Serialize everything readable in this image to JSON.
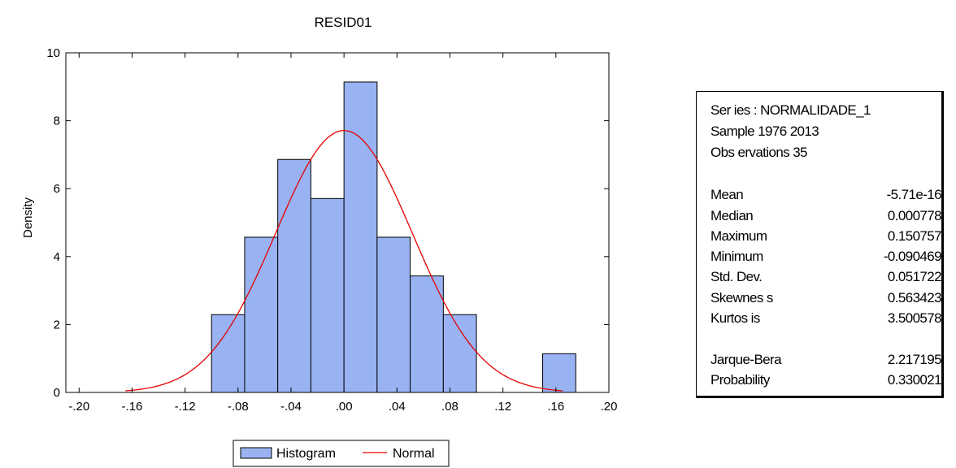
{
  "chart_data": {
    "type": "bar",
    "title": "RESID01",
    "xlabel": "",
    "ylabel": "Density",
    "xlim": [
      -0.21,
      0.2
    ],
    "ylim": [
      0,
      10
    ],
    "xticks": [
      {
        "value": -0.2,
        "label": "-.20"
      },
      {
        "value": -0.16,
        "label": "-.16"
      },
      {
        "value": -0.12,
        "label": "-.12"
      },
      {
        "value": -0.08,
        "label": "-.08"
      },
      {
        "value": -0.04,
        "label": "-.04"
      },
      {
        "value": 0.0,
        "label": ".00"
      },
      {
        "value": 0.04,
        "label": ".04"
      },
      {
        "value": 0.08,
        "label": ".08"
      },
      {
        "value": 0.12,
        "label": ".12"
      },
      {
        "value": 0.16,
        "label": ".16"
      },
      {
        "value": 0.2,
        "label": ".20"
      }
    ],
    "yticks": [
      {
        "value": 0,
        "label": "0"
      },
      {
        "value": 2,
        "label": "2"
      },
      {
        "value": 4,
        "label": "4"
      },
      {
        "value": 6,
        "label": "6"
      },
      {
        "value": 8,
        "label": "8"
      },
      {
        "value": 10,
        "label": "10"
      }
    ],
    "grid": false,
    "legend_position": "bottom",
    "series": [
      {
        "name": "Histogram",
        "type": "histogram",
        "color": "#99B3F2",
        "bins": [
          {
            "x0": -0.1,
            "x1": -0.075,
            "density": 2.29
          },
          {
            "x0": -0.075,
            "x1": -0.05,
            "density": 4.57
          },
          {
            "x0": -0.05,
            "x1": -0.025,
            "density": 6.86
          },
          {
            "x0": -0.025,
            "x1": 0.0,
            "density": 5.71
          },
          {
            "x0": 0.0,
            "x1": 0.025,
            "density": 9.14
          },
          {
            "x0": 0.025,
            "x1": 0.05,
            "density": 4.57
          },
          {
            "x0": 0.05,
            "x1": 0.075,
            "density": 3.43
          },
          {
            "x0": 0.075,
            "x1": 0.1,
            "density": 2.29
          },
          {
            "x0": 0.15,
            "x1": 0.175,
            "density": 1.14
          }
        ]
      },
      {
        "name": "Normal",
        "type": "line",
        "color": "#E60000",
        "distribution": "normal",
        "mean": 0,
        "std": 0.051722,
        "x_range": [
          -0.165,
          0.165
        ]
      }
    ]
  },
  "stats": {
    "series": "Ser ies : NORMALIDADE_1",
    "sample": "Sample 1976 2013",
    "observations": "Obs ervations  35",
    "rows": [
      {
        "label": "Mean",
        "value": "-5.71e-16"
      },
      {
        "label": "Median",
        "value": "0.000778"
      },
      {
        "label": "Maximum",
        "value": "0.150757"
      },
      {
        "label": "Minimum",
        "value": "-0.090469"
      },
      {
        "label": "Std. Dev.",
        "value": "0.051722"
      },
      {
        "label": "Skewnes s",
        "value": "0.563423"
      },
      {
        "label": "Kurtos is",
        "value": "3.500578"
      },
      {
        "label": "Jarque-Bera",
        "value": "2.217195"
      },
      {
        "label": "Probability",
        "value": "0.330021"
      }
    ]
  }
}
